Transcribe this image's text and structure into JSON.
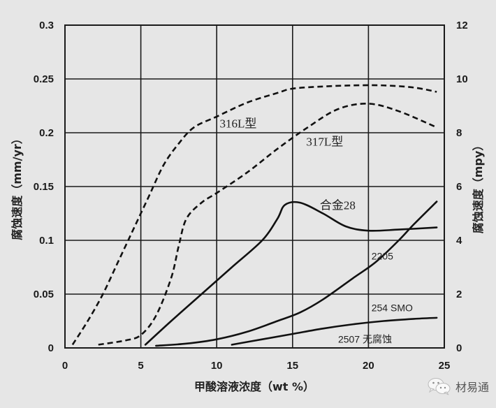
{
  "chart_data": {
    "type": "line",
    "title": "",
    "xlabel": "甲酸溶液浓度（wt %）",
    "ylabel": "腐蚀速度（mm/yr）",
    "ylabel_right": "腐蚀速度（mpy）",
    "xlim": [
      0,
      25
    ],
    "ylim": [
      0,
      0.3
    ],
    "ylim_right": [
      0,
      12
    ],
    "xticks": [
      "0",
      "5",
      "10",
      "15",
      "20",
      "25"
    ],
    "yticks": [
      "0",
      "0.05",
      "0.1",
      "0.15",
      "0.2",
      "0.25",
      "0.3"
    ],
    "yticks_right": [
      "0",
      "2",
      "4",
      "6",
      "8",
      "10",
      "12"
    ],
    "grid": true,
    "legend": "inline labels",
    "series": [
      {
        "name": "316L型",
        "style": "dashed",
        "x": [
          0.5,
          1.5,
          2.5,
          3.5,
          4.5,
          5.5,
          6.5,
          7.5,
          8.5,
          10,
          12,
          14,
          15,
          17,
          19,
          21,
          23,
          24.5
        ],
        "y": [
          0.003,
          0.025,
          0.05,
          0.08,
          0.11,
          0.14,
          0.17,
          0.19,
          0.205,
          0.215,
          0.228,
          0.237,
          0.241,
          0.243,
          0.244,
          0.244,
          0.242,
          0.238
        ],
        "label_pos": [
          10.2,
          0.205
        ]
      },
      {
        "name": "317L型",
        "style": "dashed",
        "x": [
          2.2,
          4,
          5,
          6,
          7,
          7.5,
          8,
          9,
          10,
          12,
          14,
          16,
          18,
          20,
          22,
          24.5
        ],
        "y": [
          0.003,
          0.007,
          0.012,
          0.03,
          0.065,
          0.095,
          0.12,
          0.135,
          0.144,
          0.163,
          0.185,
          0.205,
          0.222,
          0.227,
          0.22,
          0.205
        ],
        "label_pos": [
          15.9,
          0.188
        ]
      },
      {
        "name": "合金28",
        "style": "solid",
        "x": [
          5.3,
          7,
          9,
          11,
          13,
          14,
          14.5,
          15.5,
          17,
          18.5,
          20,
          22,
          24.5
        ],
        "y": [
          0.003,
          0.025,
          0.05,
          0.075,
          0.1,
          0.12,
          0.133,
          0.135,
          0.125,
          0.113,
          0.109,
          0.11,
          0.112
        ],
        "label_pos": [
          16.8,
          0.129
        ]
      },
      {
        "name": "2205",
        "style": "solid",
        "x": [
          6,
          8,
          10,
          12,
          14,
          15.5,
          17,
          19,
          20.5,
          22,
          23,
          24.5
        ],
        "y": [
          0.002,
          0.004,
          0.008,
          0.015,
          0.025,
          0.033,
          0.045,
          0.065,
          0.08,
          0.1,
          0.115,
          0.136
        ],
        "label_pos": [
          20.2,
          0.082
        ]
      },
      {
        "name": "254 SMO",
        "style": "solid",
        "x": [
          11,
          13,
          15,
          17,
          19,
          21,
          23,
          24.5
        ],
        "y": [
          0.003,
          0.008,
          0.013,
          0.018,
          0.022,
          0.025,
          0.027,
          0.028
        ],
        "label_pos": [
          20.2,
          0.034
        ]
      },
      {
        "name": "2507 无腐蚀",
        "style": "none",
        "x": [],
        "y": [],
        "label_pos": [
          18.0,
          0.005
        ]
      }
    ]
  },
  "watermark": {
    "icon": "wechat-icon",
    "text": "材易通"
  }
}
